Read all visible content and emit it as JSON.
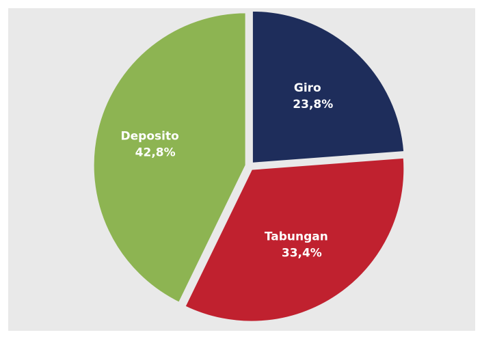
{
  "chart_data": {
    "type": "pie",
    "categories": [
      "Giro",
      "Tabungan",
      "Deposito"
    ],
    "values": [
      23.8,
      33.4,
      42.8
    ],
    "value_labels": [
      "23,8%",
      "33,4%",
      "42,8%"
    ],
    "colors": [
      "#1e2d5b",
      "#c0212f",
      "#8db452"
    ]
  }
}
